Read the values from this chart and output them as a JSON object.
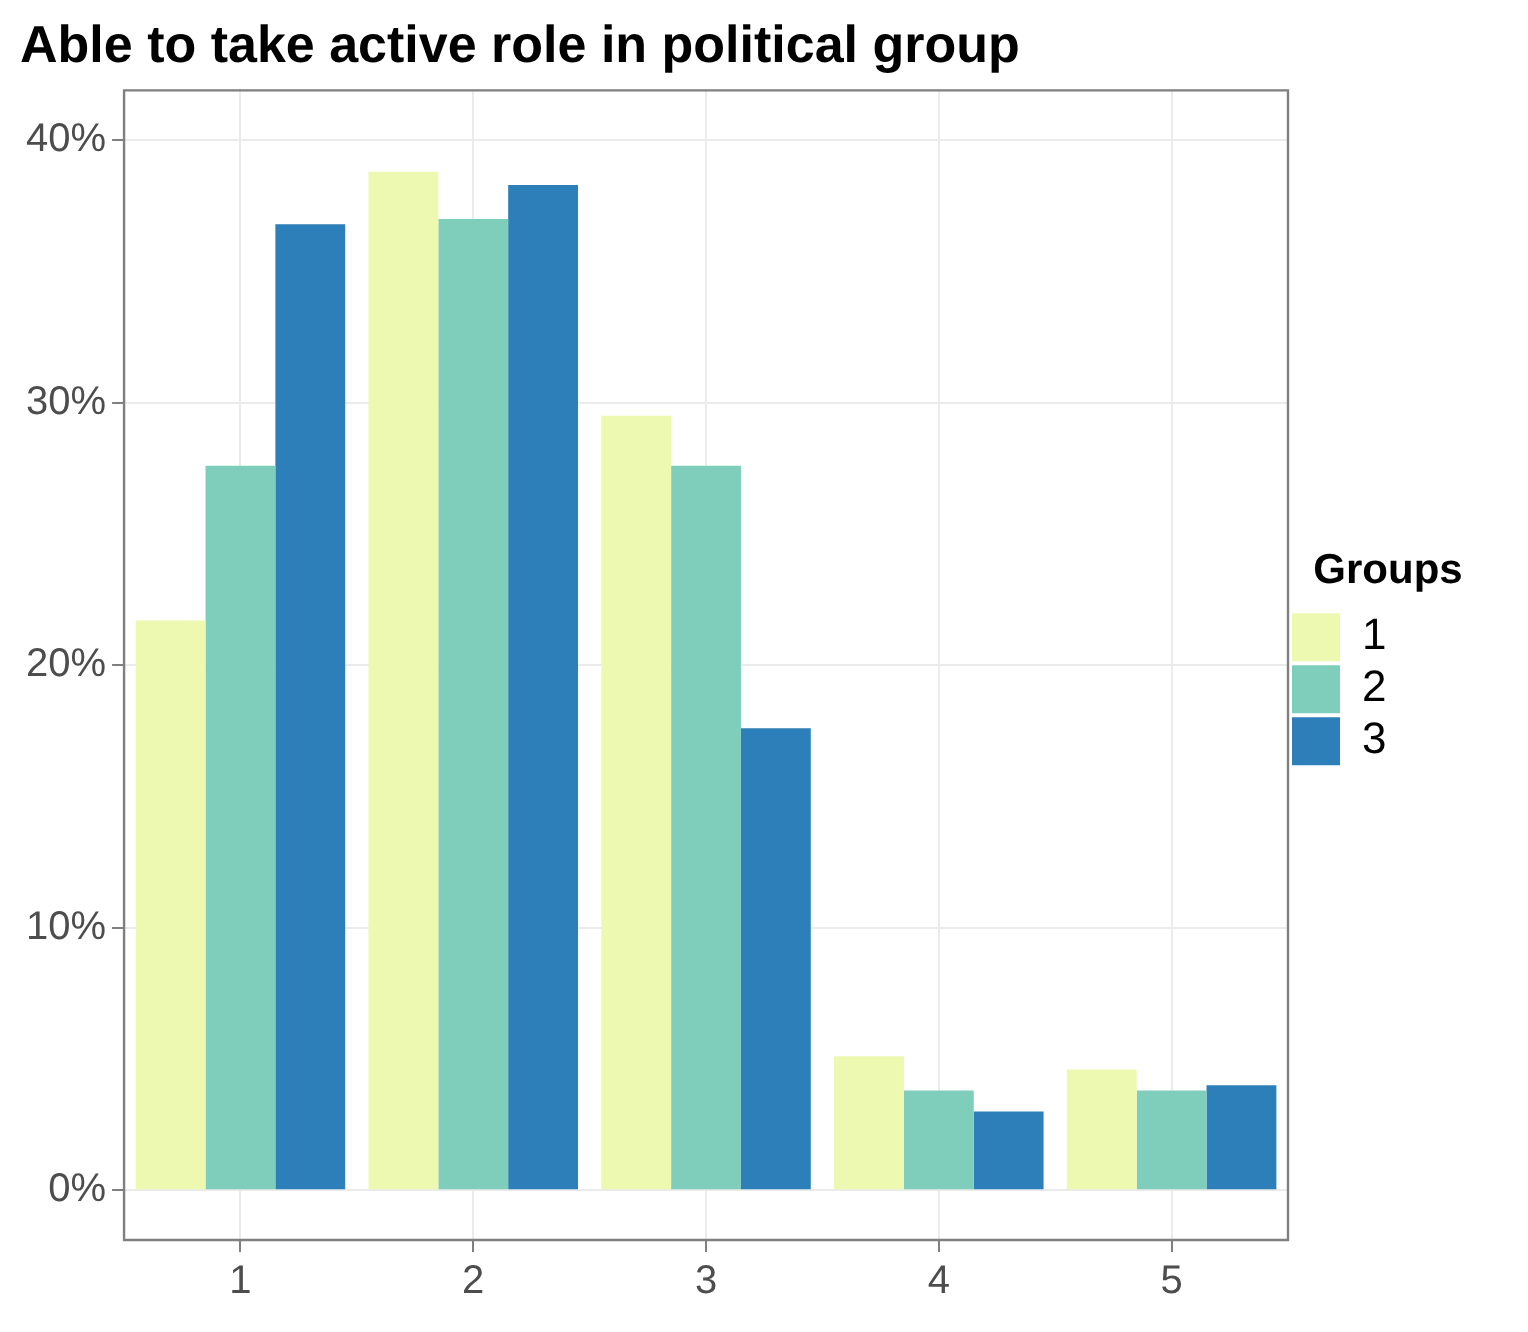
{
  "chart_data": {
    "type": "bar",
    "title": "Able to take active role in political group",
    "legend_title": "Groups",
    "categories": [
      "1",
      "2",
      "3",
      "4",
      "5"
    ],
    "series": [
      {
        "name": "1",
        "color": "#edf8b1",
        "values": [
          21.7,
          38.8,
          29.5,
          5.1,
          4.6
        ]
      },
      {
        "name": "2",
        "color": "#7fcdbb",
        "values": [
          27.6,
          37.0,
          27.6,
          3.8,
          3.8
        ]
      },
      {
        "name": "3",
        "color": "#2c7fb8",
        "values": [
          36.8,
          38.3,
          17.6,
          3.0,
          4.0
        ]
      }
    ],
    "ylim": [
      -1.9,
      41.9
    ],
    "yticks": [
      {
        "value": 0,
        "label": "0%"
      },
      {
        "value": 10,
        "label": "10%"
      },
      {
        "value": 20,
        "label": "20%"
      },
      {
        "value": 30,
        "label": "30%"
      },
      {
        "value": 40,
        "label": "40%"
      }
    ],
    "grid": true,
    "legend": "right"
  }
}
